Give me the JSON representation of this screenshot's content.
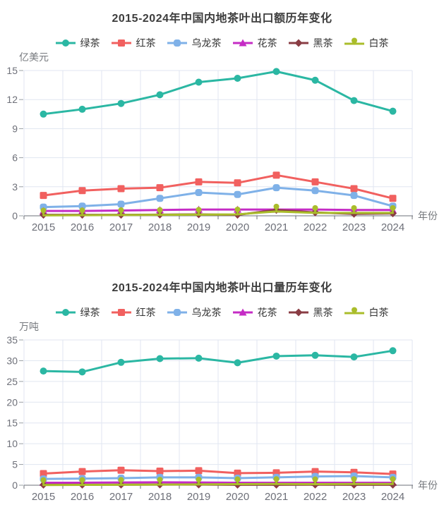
{
  "charts": [
    {
      "title": "2015-2024年中国内地茶叶出口额历年变化",
      "y_axis_name": "亿美元",
      "x_axis_name": "年份",
      "chart_data": {
        "type": "line",
        "x": [
          "2015",
          "2016",
          "2017",
          "2018",
          "2019",
          "2020",
          "2021",
          "2022",
          "2023",
          "2024"
        ],
        "ylim": [
          0,
          15
        ],
        "ytick_step": 3,
        "grid": true,
        "legend_position": "top",
        "series": [
          {
            "name": "绿茶",
            "color": "#2bb7a3",
            "symbol": "circle",
            "values": [
              10.5,
              11.0,
              11.6,
              12.5,
              13.8,
              14.2,
              14.9,
              14.0,
              11.9,
              10.8
            ]
          },
          {
            "name": "红茶",
            "color": "#f1605f",
            "symbol": "rect",
            "values": [
              2.1,
              2.6,
              2.8,
              2.9,
              3.5,
              3.4,
              4.2,
              3.5,
              2.8,
              1.8
            ]
          },
          {
            "name": "乌龙茶",
            "color": "#7fb1e8",
            "symbol": "roundRect",
            "values": [
              0.9,
              1.0,
              1.2,
              1.8,
              2.4,
              2.2,
              2.9,
              2.6,
              2.1,
              1.0
            ]
          },
          {
            "name": "花茶",
            "color": "#c52cc5",
            "symbol": "triangle",
            "values": [
              0.5,
              0.5,
              0.55,
              0.6,
              0.65,
              0.65,
              0.65,
              0.65,
              0.6,
              0.6
            ]
          },
          {
            "name": "黑茶",
            "color": "#8a3d44",
            "symbol": "diamond",
            "values": [
              0.1,
              0.1,
              0.1,
              0.12,
              0.15,
              0.1,
              0.6,
              0.35,
              0.2,
              0.25
            ]
          },
          {
            "name": "白茶",
            "color": "#aabd2b",
            "symbol": "pin",
            "values": [
              0.05,
              0.06,
              0.08,
              0.1,
              0.12,
              0.15,
              0.45,
              0.3,
              0.3,
              0.3
            ]
          }
        ]
      }
    },
    {
      "title": "2015-2024年中国内地茶叶出口量历年变化",
      "y_axis_name": "万吨",
      "x_axis_name": "年份",
      "chart_data": {
        "type": "line",
        "x": [
          "2015",
          "2016",
          "2017",
          "2018",
          "2019",
          "2020",
          "2021",
          "2022",
          "2023",
          "2024"
        ],
        "ylim": [
          0,
          35
        ],
        "ytick_step": 5,
        "grid": true,
        "legend_position": "top",
        "series": [
          {
            "name": "绿茶",
            "color": "#2bb7a3",
            "symbol": "circle",
            "values": [
              27.5,
              27.3,
              29.6,
              30.5,
              30.6,
              29.5,
              31.1,
              31.3,
              30.9,
              32.4
            ]
          },
          {
            "name": "红茶",
            "color": "#f1605f",
            "symbol": "rect",
            "values": [
              2.8,
              3.3,
              3.6,
              3.4,
              3.5,
              2.9,
              3.0,
              3.3,
              3.1,
              2.7
            ]
          },
          {
            "name": "乌龙茶",
            "color": "#7fb1e8",
            "symbol": "roundRect",
            "values": [
              1.5,
              1.6,
              1.7,
              1.9,
              1.9,
              1.7,
              1.9,
              2.1,
              2.2,
              1.9
            ]
          },
          {
            "name": "花茶",
            "color": "#c52cc5",
            "symbol": "triangle",
            "values": [
              0.6,
              0.6,
              0.65,
              0.7,
              0.65,
              0.6,
              0.6,
              0.6,
              0.6,
              0.6
            ]
          },
          {
            "name": "黑茶",
            "color": "#8a3d44",
            "symbol": "diamond",
            "values": [
              0.1,
              0.1,
              0.12,
              0.15,
              0.15,
              0.1,
              0.1,
              0.12,
              0.1,
              0.1
            ]
          },
          {
            "name": "白茶",
            "color": "#aabd2b",
            "symbol": "pin",
            "values": [
              0.05,
              0.08,
              0.1,
              0.15,
              0.2,
              0.25,
              0.3,
              0.25,
              0.3,
              0.3
            ]
          }
        ]
      }
    }
  ],
  "style": {
    "grid_color": "#e0e6f1",
    "axis_line_color": "#6e7079",
    "title_color": "#3d3d3d",
    "tick_label_color": "#6e7079"
  }
}
